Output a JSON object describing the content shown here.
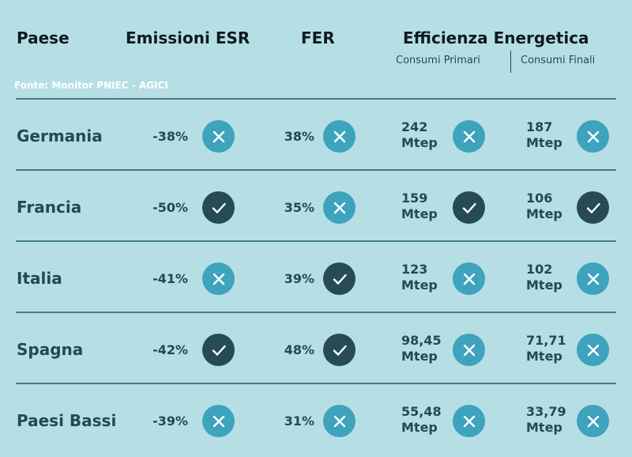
{
  "headers": {
    "country": "Paese",
    "esr": "Emissioni ESR",
    "fer": "FER",
    "efficiency": "Efficienza Energetica",
    "primary": "Consumi Primari",
    "final": "Consumi Finali"
  },
  "source": "Fonte: Monitor PNIEC - AGICI",
  "colors": {
    "background": "#b6dfe5",
    "badge_fail": "#3ea3bd",
    "badge_pass": "#264b56",
    "rule": "#3e7d8b"
  },
  "rows": [
    {
      "country": "Germania",
      "esr": "-38%",
      "esr_ok": false,
      "fer": "38%",
      "fer_ok": false,
      "primary_value": "242",
      "primary_unit": "Mtep",
      "primary_ok": false,
      "final_value": "187",
      "final_unit": "Mtep",
      "final_ok": false
    },
    {
      "country": "Francia",
      "esr": "-50%",
      "esr_ok": true,
      "fer": "35%",
      "fer_ok": false,
      "primary_value": "159",
      "primary_unit": "Mtep",
      "primary_ok": true,
      "final_value": "106",
      "final_unit": "Mtep",
      "final_ok": true
    },
    {
      "country": "Italia",
      "esr": "-41%",
      "esr_ok": false,
      "fer": "39%",
      "fer_ok": true,
      "primary_value": "123",
      "primary_unit": "Mtep",
      "primary_ok": false,
      "final_value": "102",
      "final_unit": "Mtep",
      "final_ok": false
    },
    {
      "country": "Spagna",
      "esr": "-42%",
      "esr_ok": true,
      "fer": "48%",
      "fer_ok": true,
      "primary_value": "98,45",
      "primary_unit": "Mtep",
      "primary_ok": false,
      "final_value": "71,71",
      "final_unit": "Mtep",
      "final_ok": false
    },
    {
      "country": "Paesi Bassi",
      "esr": "-39%",
      "esr_ok": false,
      "fer": "31%",
      "fer_ok": false,
      "primary_value": "55,48",
      "primary_unit": "Mtep",
      "primary_ok": false,
      "final_value": "33,79",
      "final_unit": "Mtep",
      "final_ok": false
    }
  ]
}
